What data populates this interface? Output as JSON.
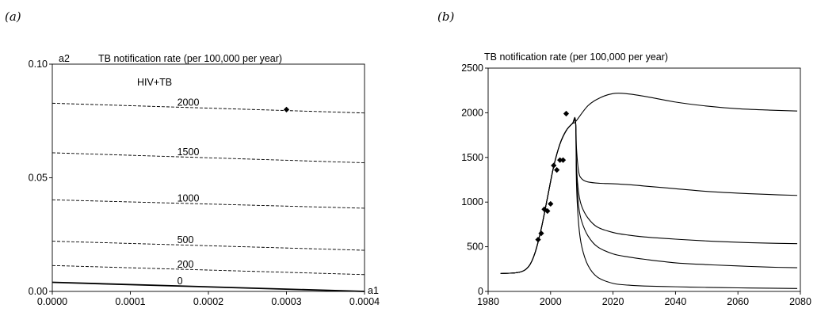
{
  "panels": {
    "a_label": "(a)",
    "b_label": "(b)"
  },
  "chart_data": [
    {
      "type": "line",
      "title": "TB notification rate (per 100,000 per year)",
      "xlabel": "a1",
      "ylabel": "a2",
      "annotation": "HIV+TB",
      "xlim": [
        0.0,
        0.0004
      ],
      "ylim": [
        0.0,
        0.1
      ],
      "xticks": [
        "0.0000",
        "0.0001",
        "0.0002",
        "0.0003",
        "0.0004"
      ],
      "yticks": [
        "0.00",
        "0.05",
        "0.10"
      ],
      "contours": [
        {
          "level": "0",
          "x": [
            0.0,
            0.0004
          ],
          "y": [
            0.004,
            0.0
          ],
          "style": "solid"
        },
        {
          "level": "200",
          "x": [
            0.0,
            0.0004
          ],
          "y": [
            0.0114,
            0.0074
          ],
          "style": "dashed"
        },
        {
          "level": "500",
          "x": [
            0.0,
            0.0004
          ],
          "y": [
            0.0221,
            0.0181
          ],
          "style": "dashed"
        },
        {
          "level": "1000",
          "x": [
            0.0,
            0.0004
          ],
          "y": [
            0.0403,
            0.0366
          ],
          "style": "dashed"
        },
        {
          "level": "1500",
          "x": [
            0.0,
            0.0004
          ],
          "y": [
            0.061,
            0.0566
          ],
          "style": "dashed"
        },
        {
          "level": "2000",
          "x": [
            0.0,
            0.0004
          ],
          "y": [
            0.0828,
            0.0785
          ],
          "style": "dashed"
        }
      ],
      "points": [
        {
          "x": 0.0003,
          "y": 0.08
        }
      ]
    },
    {
      "type": "line",
      "title": "TB notification rate (per 100,000 per year)",
      "xlabel": "",
      "ylabel": "",
      "xlim": [
        1980,
        2080
      ],
      "ylim": [
        0,
        2500
      ],
      "xticks": [
        "1980",
        "2000",
        "2020",
        "2040",
        "2060",
        "2080"
      ],
      "yticks": [
        "0",
        "500",
        "1000",
        "1500",
        "2000",
        "2500"
      ],
      "series": [
        {
          "x": [
            1984,
            1990,
            1993,
            1995,
            1997,
            1999,
            2001,
            2003,
            2005,
            2007,
            2008,
            2012,
            2016,
            2020,
            2024,
            2030,
            2040,
            2050,
            2060,
            2070,
            2079
          ],
          "y": [
            200,
            215,
            280,
            430,
            700,
            1050,
            1400,
            1650,
            1800,
            1880,
            1900,
            2080,
            2170,
            2215,
            2215,
            2185,
            2120,
            2075,
            2045,
            2030,
            2020
          ]
        },
        {
          "x": [
            1984,
            1990,
            1993,
            1995,
            1997,
            1999,
            2001,
            2003,
            2005,
            2007,
            2008,
            2008.3,
            2009,
            2010,
            2012,
            2016,
            2020,
            2025,
            2030,
            2040,
            2050,
            2060,
            2070,
            2079
          ],
          "y": [
            200,
            215,
            280,
            430,
            700,
            1050,
            1400,
            1650,
            1800,
            1880,
            1900,
            1600,
            1340,
            1260,
            1225,
            1210,
            1205,
            1195,
            1180,
            1150,
            1120,
            1100,
            1085,
            1075
          ]
        },
        {
          "x": [
            1984,
            1990,
            1993,
            1995,
            1997,
            1999,
            2001,
            2003,
            2005,
            2007,
            2008,
            2008.3,
            2009,
            2010,
            2012,
            2015,
            2020,
            2025,
            2030,
            2040,
            2050,
            2060,
            2070,
            2079
          ],
          "y": [
            200,
            215,
            280,
            430,
            700,
            1050,
            1400,
            1650,
            1800,
            1880,
            1900,
            1400,
            1100,
            950,
            820,
            720,
            660,
            630,
            610,
            585,
            565,
            550,
            540,
            535
          ]
        },
        {
          "x": [
            1984,
            1990,
            1993,
            1995,
            1997,
            1999,
            2001,
            2003,
            2005,
            2007,
            2008,
            2008.3,
            2009,
            2010,
            2012,
            2015,
            2020,
            2025,
            2030,
            2040,
            2050,
            2060,
            2070,
            2079
          ],
          "y": [
            200,
            215,
            280,
            430,
            700,
            1050,
            1400,
            1650,
            1800,
            1880,
            1900,
            1300,
            950,
            780,
            620,
            500,
            420,
            385,
            360,
            320,
            300,
            285,
            272,
            265
          ]
        },
        {
          "x": [
            1984,
            1990,
            1993,
            1995,
            1997,
            1999,
            2001,
            2003,
            2005,
            2007,
            2008,
            2008.3,
            2009,
            2010,
            2012,
            2015,
            2020,
            2025,
            2030,
            2040,
            2050,
            2060,
            2070,
            2079
          ],
          "y": [
            200,
            215,
            280,
            430,
            700,
            1050,
            1400,
            1650,
            1800,
            1880,
            1900,
            1200,
            750,
            500,
            290,
            160,
            90,
            70,
            60,
            52,
            45,
            40,
            36,
            33
          ]
        }
      ],
      "points": [
        {
          "x": 1996,
          "y": 580
        },
        {
          "x": 1997,
          "y": 650
        },
        {
          "x": 1998,
          "y": 920
        },
        {
          "x": 1999,
          "y": 900
        },
        {
          "x": 2000,
          "y": 980
        },
        {
          "x": 2001,
          "y": 1410
        },
        {
          "x": 2002,
          "y": 1360
        },
        {
          "x": 2003,
          "y": 1470
        },
        {
          "x": 2004,
          "y": 1470
        },
        {
          "x": 2005,
          "y": 1990
        }
      ]
    }
  ]
}
